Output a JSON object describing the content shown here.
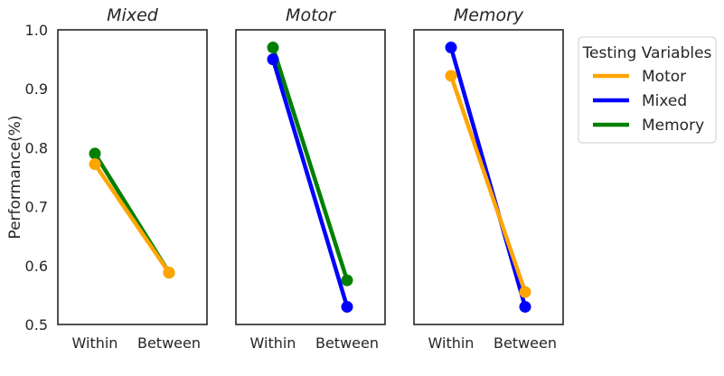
{
  "chart_data": {
    "type": "line",
    "ylabel": "Performance(%)",
    "ylim": [
      0.5,
      1.0
    ],
    "yticks": [
      "0.5",
      "0.6",
      "0.7",
      "0.8",
      "0.9",
      "1.0"
    ],
    "categories": [
      "Within",
      "Between"
    ],
    "legend": {
      "title": "Testing Variables",
      "placement": "right",
      "entries": [
        {
          "name": "Motor",
          "color": "#ffa500"
        },
        {
          "name": "Mixed",
          "color": "#0000ff"
        },
        {
          "name": "Memory",
          "color": "#008000"
        }
      ]
    },
    "panels": [
      {
        "title": "Mixed",
        "series": [
          {
            "name": "Memory",
            "color": "#008000",
            "values": [
              0.79,
              0.588
            ]
          },
          {
            "name": "Motor",
            "color": "#ffa500",
            "values": [
              0.772,
              0.588
            ]
          }
        ]
      },
      {
        "title": "Motor",
        "series": [
          {
            "name": "Memory",
            "color": "#008000",
            "values": [
              0.97,
              0.575
            ]
          },
          {
            "name": "Mixed",
            "color": "#0000ff",
            "values": [
              0.95,
              0.53
            ]
          }
        ]
      },
      {
        "title": "Memory",
        "series": [
          {
            "name": "Mixed",
            "color": "#0000ff",
            "values": [
              0.97,
              0.53
            ]
          },
          {
            "name": "Motor",
            "color": "#ffa500",
            "values": [
              0.922,
              0.555
            ]
          }
        ]
      }
    ]
  }
}
